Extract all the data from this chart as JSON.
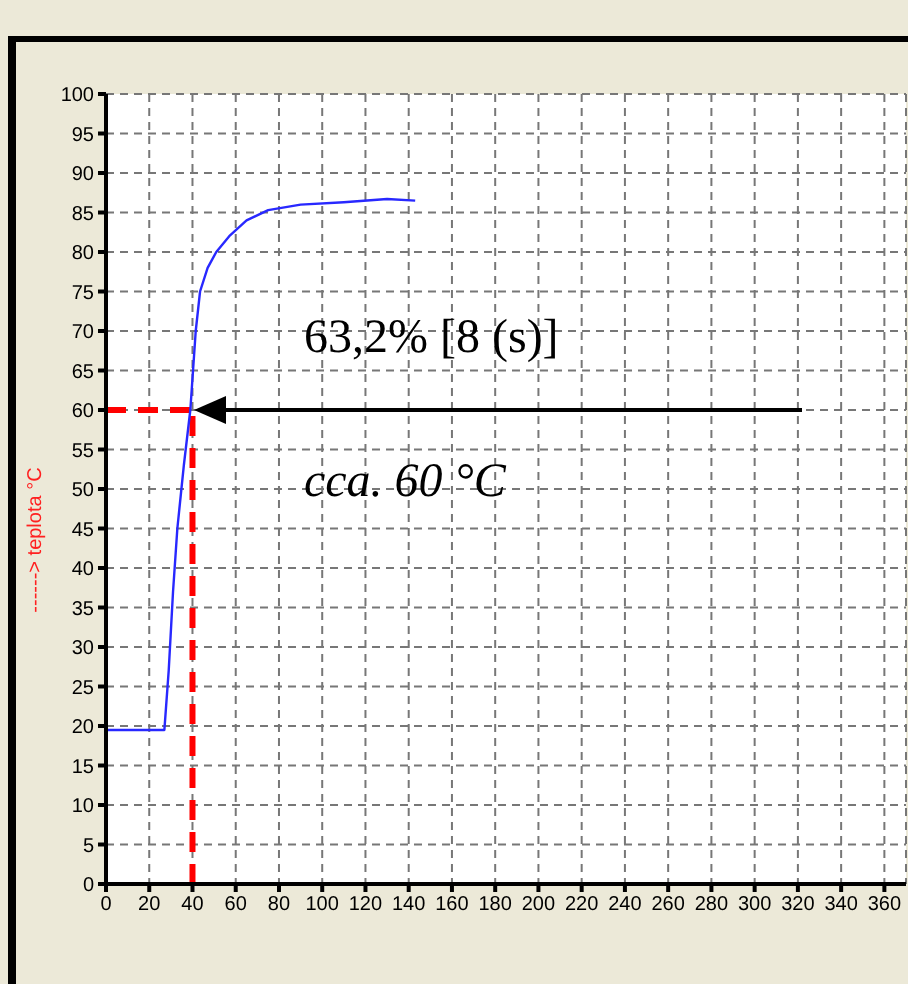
{
  "chart_data": {
    "type": "line",
    "ylabel": "------> teplota °C",
    "x": [
      0,
      27,
      29,
      31,
      33,
      36,
      39,
      41.5,
      43.5,
      47,
      51,
      57,
      65,
      75,
      90,
      110,
      130,
      143
    ],
    "series": [
      {
        "color": "#2828ff",
        "values": [
          19.5,
          19.5,
          27,
          37,
          45,
          53,
          60,
          70,
          75,
          78,
          80,
          82,
          84,
          85.3,
          86,
          86.3,
          86.7,
          86.5
        ]
      }
    ],
    "xlim": [
      0,
      370
    ],
    "xticks": [
      0,
      20,
      40,
      60,
      80,
      100,
      120,
      140,
      160,
      180,
      200,
      220,
      240,
      260,
      280,
      300,
      320,
      340,
      360
    ],
    "ylim": [
      0,
      100
    ],
    "yticks": [
      0,
      5,
      10,
      15,
      20,
      25,
      30,
      35,
      40,
      45,
      50,
      55,
      60,
      65,
      70,
      75,
      80,
      85,
      90,
      95,
      100
    ],
    "grid": true,
    "marker": "none",
    "line_style": "solid",
    "ref_lines": [
      {
        "axis": "y",
        "value": 60,
        "color": "#ff0000",
        "line_style": "dashed"
      },
      {
        "axis": "x",
        "value": 40,
        "color": "#ff0000",
        "line_style": "dashed"
      }
    ],
    "annotations": [
      "63,2% [8 (s)]",
      "cca. 60 °C"
    ]
  }
}
